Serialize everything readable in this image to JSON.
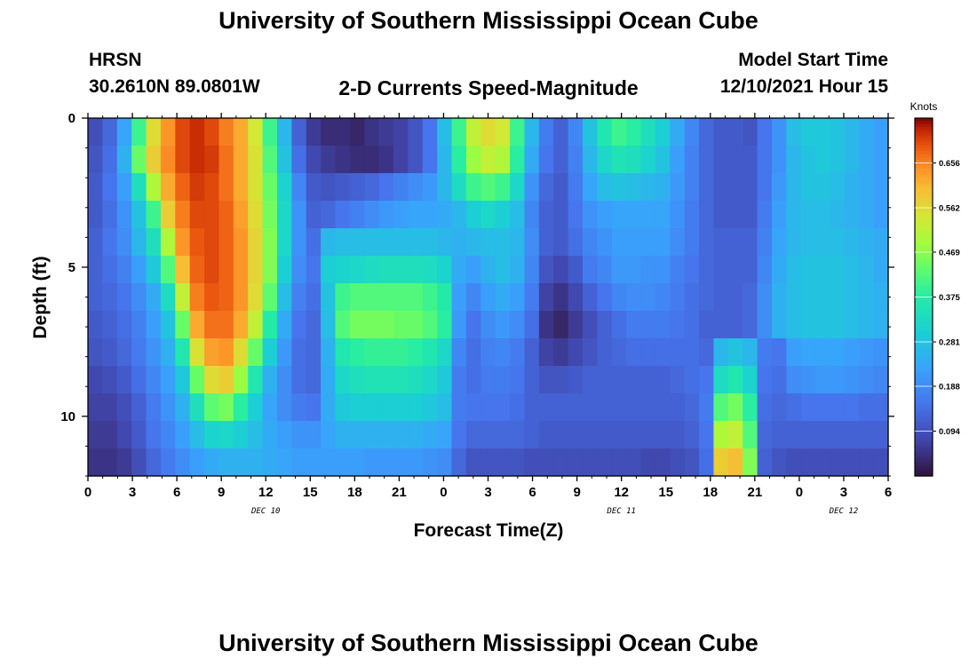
{
  "header": {
    "title": "University of Southern Mississippi Ocean Cube",
    "station": "HRSN",
    "location": "30.2610N  89.0801W",
    "plot_title": "2-D Currents Speed-Magnitude",
    "model_start_label": "Model Start Time",
    "model_start_value": "12/10/2021 Hour 15"
  },
  "footer": {
    "title": "University of Southern Mississippi Ocean Cube"
  },
  "chart_data": {
    "type": "heatmap",
    "title": "2-D Currents Speed-Magnitude",
    "xlabel": "Forecast Time(Z)",
    "ylabel": "Depth (ft)",
    "x_hours": [
      0,
      54
    ],
    "y_range": [
      0,
      12
    ],
    "y_ticks": [
      "0",
      "5",
      "10"
    ],
    "x_tick_labels": [
      "0",
      "3",
      "6",
      "9",
      "12",
      "15",
      "18",
      "21",
      "0",
      "3",
      "6",
      "9",
      "12",
      "15",
      "18",
      "21",
      "0",
      "3",
      "6"
    ],
    "day_labels": [
      {
        "text": "DEC 10",
        "at_hour": 12
      },
      {
        "text": "DEC 11",
        "at_hour": 36
      },
      {
        "text": "DEC 12",
        "at_hour": 51
      }
    ],
    "colorbar": {
      "units": "Knots",
      "min": 0,
      "max": 0.75,
      "ticks": [
        "0.656",
        "0.562",
        "0.469",
        "0.375",
        "0.281",
        "0.188",
        "0.094"
      ],
      "colormap": "turbo"
    },
    "speed_knots_by_depth_row": [
      [
        0.09,
        0.13,
        0.23,
        0.4,
        0.56,
        0.64,
        0.7,
        0.72,
        0.7,
        0.66,
        0.62,
        0.54,
        0.4,
        0.26,
        0.12,
        0.06,
        0.04,
        0.04,
        0.03,
        0.05,
        0.06,
        0.07,
        0.1,
        0.15,
        0.27,
        0.4,
        0.52,
        0.56,
        0.54,
        0.4,
        0.26,
        0.16,
        0.12,
        0.18,
        0.28,
        0.36,
        0.4,
        0.38,
        0.34,
        0.3,
        0.24,
        0.18,
        0.13,
        0.11,
        0.11,
        0.1,
        0.15,
        0.2,
        0.27,
        0.29,
        0.29,
        0.28,
        0.26,
        0.24,
        0.22
      ],
      [
        0.1,
        0.14,
        0.25,
        0.44,
        0.58,
        0.65,
        0.7,
        0.72,
        0.71,
        0.67,
        0.62,
        0.55,
        0.42,
        0.28,
        0.14,
        0.08,
        0.06,
        0.05,
        0.04,
        0.04,
        0.05,
        0.07,
        0.1,
        0.15,
        0.26,
        0.38,
        0.48,
        0.52,
        0.5,
        0.38,
        0.24,
        0.15,
        0.12,
        0.17,
        0.26,
        0.32,
        0.35,
        0.34,
        0.31,
        0.28,
        0.22,
        0.17,
        0.13,
        0.11,
        0.11,
        0.11,
        0.15,
        0.2,
        0.26,
        0.28,
        0.29,
        0.28,
        0.26,
        0.24,
        0.22
      ],
      [
        0.11,
        0.15,
        0.22,
        0.34,
        0.5,
        0.62,
        0.68,
        0.71,
        0.7,
        0.67,
        0.62,
        0.55,
        0.44,
        0.31,
        0.18,
        0.11,
        0.1,
        0.11,
        0.12,
        0.13,
        0.15,
        0.17,
        0.19,
        0.21,
        0.26,
        0.33,
        0.4,
        0.42,
        0.4,
        0.32,
        0.2,
        0.13,
        0.11,
        0.16,
        0.23,
        0.27,
        0.28,
        0.27,
        0.26,
        0.25,
        0.21,
        0.17,
        0.13,
        0.11,
        0.11,
        0.11,
        0.15,
        0.21,
        0.26,
        0.28,
        0.28,
        0.27,
        0.25,
        0.24,
        0.22
      ],
      [
        0.11,
        0.14,
        0.2,
        0.28,
        0.4,
        0.58,
        0.66,
        0.7,
        0.7,
        0.68,
        0.63,
        0.56,
        0.45,
        0.32,
        0.2,
        0.12,
        0.13,
        0.15,
        0.17,
        0.19,
        0.21,
        0.22,
        0.23,
        0.23,
        0.24,
        0.26,
        0.3,
        0.32,
        0.3,
        0.27,
        0.18,
        0.12,
        0.11,
        0.15,
        0.2,
        0.22,
        0.23,
        0.23,
        0.23,
        0.23,
        0.2,
        0.16,
        0.13,
        0.11,
        0.11,
        0.11,
        0.16,
        0.22,
        0.26,
        0.27,
        0.27,
        0.26,
        0.25,
        0.24,
        0.22
      ],
      [
        0.12,
        0.15,
        0.19,
        0.26,
        0.34,
        0.5,
        0.64,
        0.69,
        0.7,
        0.68,
        0.64,
        0.57,
        0.46,
        0.32,
        0.2,
        0.14,
        0.26,
        0.27,
        0.27,
        0.27,
        0.27,
        0.27,
        0.27,
        0.27,
        0.26,
        0.25,
        0.26,
        0.27,
        0.27,
        0.26,
        0.19,
        0.12,
        0.11,
        0.14,
        0.18,
        0.2,
        0.22,
        0.22,
        0.22,
        0.22,
        0.19,
        0.16,
        0.13,
        0.12,
        0.12,
        0.12,
        0.17,
        0.23,
        0.26,
        0.27,
        0.27,
        0.27,
        0.26,
        0.25,
        0.24
      ],
      [
        0.12,
        0.14,
        0.17,
        0.22,
        0.29,
        0.42,
        0.6,
        0.68,
        0.7,
        0.68,
        0.64,
        0.57,
        0.46,
        0.3,
        0.19,
        0.15,
        0.3,
        0.31,
        0.32,
        0.33,
        0.34,
        0.34,
        0.34,
        0.33,
        0.31,
        0.24,
        0.22,
        0.25,
        0.27,
        0.25,
        0.18,
        0.1,
        0.08,
        0.11,
        0.16,
        0.18,
        0.21,
        0.21,
        0.2,
        0.2,
        0.17,
        0.15,
        0.13,
        0.12,
        0.12,
        0.12,
        0.18,
        0.24,
        0.27,
        0.28,
        0.28,
        0.28,
        0.27,
        0.26,
        0.24
      ],
      [
        0.12,
        0.13,
        0.15,
        0.19,
        0.24,
        0.33,
        0.52,
        0.66,
        0.69,
        0.68,
        0.64,
        0.56,
        0.43,
        0.27,
        0.17,
        0.14,
        0.28,
        0.4,
        0.42,
        0.42,
        0.42,
        0.42,
        0.42,
        0.4,
        0.37,
        0.22,
        0.18,
        0.22,
        0.24,
        0.22,
        0.16,
        0.07,
        0.05,
        0.08,
        0.12,
        0.15,
        0.18,
        0.19,
        0.19,
        0.18,
        0.16,
        0.14,
        0.13,
        0.12,
        0.12,
        0.13,
        0.19,
        0.25,
        0.27,
        0.28,
        0.28,
        0.28,
        0.27,
        0.26,
        0.25
      ],
      [
        0.11,
        0.12,
        0.14,
        0.17,
        0.22,
        0.28,
        0.44,
        0.62,
        0.67,
        0.67,
        0.62,
        0.52,
        0.37,
        0.24,
        0.15,
        0.13,
        0.27,
        0.42,
        0.45,
        0.45,
        0.45,
        0.44,
        0.44,
        0.42,
        0.38,
        0.21,
        0.15,
        0.19,
        0.21,
        0.19,
        0.14,
        0.05,
        0.03,
        0.06,
        0.09,
        0.12,
        0.14,
        0.16,
        0.16,
        0.16,
        0.15,
        0.14,
        0.12,
        0.12,
        0.12,
        0.13,
        0.19,
        0.25,
        0.27,
        0.28,
        0.28,
        0.28,
        0.27,
        0.26,
        0.25
      ],
      [
        0.1,
        0.11,
        0.13,
        0.16,
        0.2,
        0.25,
        0.36,
        0.55,
        0.63,
        0.64,
        0.56,
        0.44,
        0.3,
        0.21,
        0.14,
        0.13,
        0.25,
        0.36,
        0.38,
        0.39,
        0.39,
        0.39,
        0.38,
        0.36,
        0.32,
        0.18,
        0.14,
        0.17,
        0.18,
        0.16,
        0.12,
        0.07,
        0.06,
        0.08,
        0.1,
        0.12,
        0.13,
        0.14,
        0.14,
        0.14,
        0.14,
        0.14,
        0.13,
        0.26,
        0.28,
        0.26,
        0.16,
        0.15,
        0.22,
        0.23,
        0.23,
        0.23,
        0.22,
        0.21,
        0.2
      ],
      [
        0.08,
        0.09,
        0.11,
        0.14,
        0.18,
        0.22,
        0.29,
        0.44,
        0.56,
        0.58,
        0.48,
        0.36,
        0.25,
        0.19,
        0.14,
        0.13,
        0.24,
        0.32,
        0.34,
        0.35,
        0.35,
        0.35,
        0.34,
        0.32,
        0.29,
        0.16,
        0.14,
        0.16,
        0.16,
        0.15,
        0.12,
        0.1,
        0.1,
        0.11,
        0.12,
        0.12,
        0.12,
        0.12,
        0.12,
        0.12,
        0.13,
        0.14,
        0.15,
        0.33,
        0.36,
        0.31,
        0.15,
        0.14,
        0.19,
        0.2,
        0.21,
        0.21,
        0.2,
        0.19,
        0.18
      ],
      [
        0.07,
        0.07,
        0.09,
        0.12,
        0.16,
        0.2,
        0.25,
        0.34,
        0.43,
        0.45,
        0.38,
        0.3,
        0.23,
        0.19,
        0.16,
        0.15,
        0.24,
        0.29,
        0.3,
        0.3,
        0.3,
        0.3,
        0.3,
        0.29,
        0.27,
        0.16,
        0.15,
        0.15,
        0.15,
        0.14,
        0.12,
        0.12,
        0.12,
        0.12,
        0.12,
        0.12,
        0.12,
        0.12,
        0.12,
        0.12,
        0.12,
        0.13,
        0.16,
        0.42,
        0.45,
        0.38,
        0.14,
        0.13,
        0.14,
        0.15,
        0.15,
        0.15,
        0.15,
        0.14,
        0.14
      ],
      [
        0.06,
        0.06,
        0.08,
        0.11,
        0.15,
        0.18,
        0.22,
        0.27,
        0.31,
        0.32,
        0.3,
        0.27,
        0.24,
        0.22,
        0.2,
        0.2,
        0.23,
        0.25,
        0.25,
        0.25,
        0.25,
        0.25,
        0.25,
        0.24,
        0.23,
        0.15,
        0.13,
        0.13,
        0.13,
        0.13,
        0.12,
        0.11,
        0.11,
        0.11,
        0.11,
        0.11,
        0.11,
        0.11,
        0.11,
        0.11,
        0.11,
        0.12,
        0.15,
        0.5,
        0.52,
        0.42,
        0.13,
        0.12,
        0.12,
        0.12,
        0.12,
        0.12,
        0.12,
        0.12,
        0.12
      ],
      [
        0.05,
        0.05,
        0.06,
        0.09,
        0.13,
        0.16,
        0.19,
        0.22,
        0.24,
        0.25,
        0.25,
        0.25,
        0.24,
        0.23,
        0.22,
        0.22,
        0.22,
        0.22,
        0.22,
        0.21,
        0.21,
        0.21,
        0.21,
        0.2,
        0.19,
        0.13,
        0.1,
        0.1,
        0.1,
        0.1,
        0.09,
        0.09,
        0.09,
        0.09,
        0.09,
        0.09,
        0.09,
        0.09,
        0.08,
        0.08,
        0.09,
        0.1,
        0.14,
        0.58,
        0.6,
        0.46,
        0.12,
        0.1,
        0.09,
        0.09,
        0.09,
        0.09,
        0.09,
        0.09,
        0.09
      ]
    ]
  }
}
